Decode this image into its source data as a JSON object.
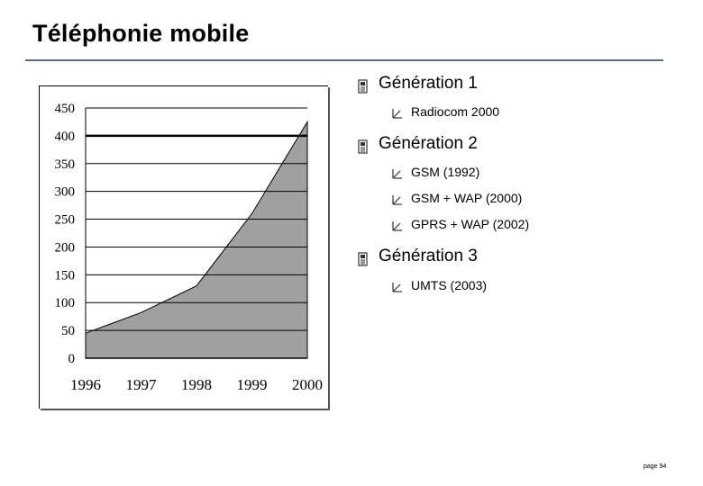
{
  "slide": {
    "title": "Téléphonie mobile",
    "page_label": "page 94"
  },
  "bullets": [
    {
      "icon": "phone-bullet-icon",
      "label": "Génération 1",
      "items": [
        {
          "icon": "check-bullet-icon",
          "label": "Radiocom 2000"
        }
      ]
    },
    {
      "icon": "phone-bullet-icon",
      "label": "Génération 2",
      "items": [
        {
          "icon": "check-bullet-icon",
          "label": "GSM (1992)"
        },
        {
          "icon": "check-bullet-icon",
          "label": "GSM + WAP (2000)"
        },
        {
          "icon": "check-bullet-icon",
          "label": "GPRS + WAP (2002)"
        }
      ]
    },
    {
      "icon": "phone-bullet-icon",
      "label": "Génération 3",
      "items": [
        {
          "icon": "check-bullet-icon",
          "label": "UMTS (2003)"
        }
      ]
    }
  ],
  "chart_data": {
    "type": "area",
    "title": "",
    "xlabel": "",
    "ylabel": "",
    "x": [
      1996,
      1997,
      1998,
      1999,
      2000
    ],
    "x_ticks": [
      "1996",
      "1997",
      "1998",
      "1999",
      "2000"
    ],
    "series": [
      {
        "values": [
          45,
          82,
          130,
          260,
          425
        ]
      }
    ],
    "ylim": [
      0,
      450
    ],
    "y_ticks": [
      0,
      50,
      100,
      150,
      200,
      250,
      300,
      350,
      400,
      450
    ],
    "grid": "horizontal",
    "colors": {
      "fill": "#a0a0a0",
      "grid": "#000000"
    }
  }
}
